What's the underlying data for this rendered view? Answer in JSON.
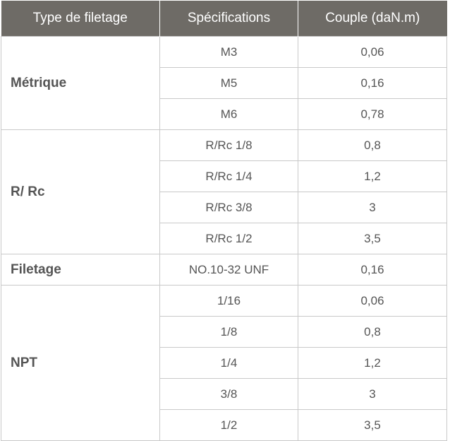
{
  "table": {
    "headers": [
      "Type de filetage",
      "Spécifications",
      "Couple (daN.m)"
    ],
    "groups": [
      {
        "type": "Métrique",
        "rows": [
          {
            "spec": "M3",
            "torque": "0,06"
          },
          {
            "spec": "M5",
            "torque": "0,16"
          },
          {
            "spec": "M6",
            "torque": "0,78"
          }
        ]
      },
      {
        "type": "R/ Rc",
        "rows": [
          {
            "spec": "R/Rc 1/8",
            "torque": "0,8"
          },
          {
            "spec": "R/Rc 1/4",
            "torque": "1,2"
          },
          {
            "spec": "R/Rc 3/8",
            "torque": "3"
          },
          {
            "spec": "R/Rc 1/2",
            "torque": "3,5"
          }
        ]
      },
      {
        "type": "Filetage",
        "rows": [
          {
            "spec": "NO.10-32 UNF",
            "torque": "0,16"
          }
        ]
      },
      {
        "type": "NPT",
        "rows": [
          {
            "spec": "1/16",
            "torque": "0,06"
          },
          {
            "spec": "1/8",
            "torque": "0,8"
          },
          {
            "spec": "1/4",
            "torque": "1,2"
          },
          {
            "spec": "3/8",
            "torque": "3"
          },
          {
            "spec": "1/2",
            "torque": "3,5"
          }
        ]
      }
    ]
  }
}
